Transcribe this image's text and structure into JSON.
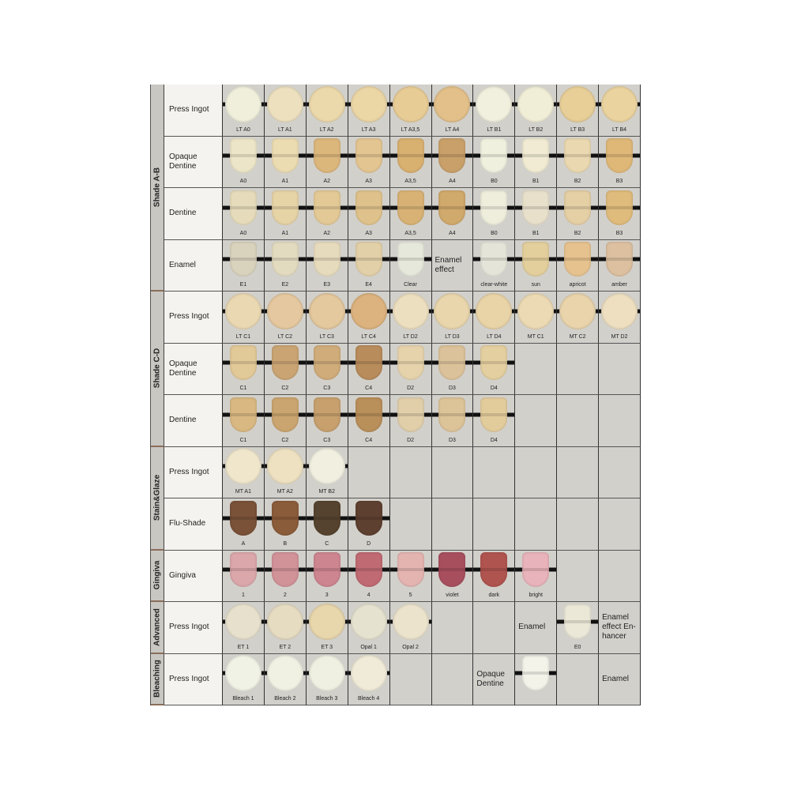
{
  "groups": [
    {
      "label": "Shade A-B",
      "rows": 4
    },
    {
      "label": "Shade C-D",
      "rows": 3
    },
    {
      "label": "Stain&Glaze",
      "rows": 2
    },
    {
      "label": "Gingiva",
      "rows": 1
    },
    {
      "label": "Advanced",
      "rows": 1
    },
    {
      "label": "Bleaching",
      "rows": 1
    }
  ],
  "rows": [
    {
      "label": "Press Ingot",
      "cells": [
        {
          "s": "ingot",
          "label": "LT A0",
          "color": "#f0efdc"
        },
        {
          "s": "ingot",
          "label": "LT A1",
          "color": "#ece0bf"
        },
        {
          "s": "ingot",
          "label": "LT A2",
          "color": "#ecd9ab"
        },
        {
          "s": "ingot",
          "label": "LT A3",
          "color": "#ebd6a6"
        },
        {
          "s": "ingot",
          "label": "LT A3,5",
          "color": "#e8cc96"
        },
        {
          "s": "ingot",
          "label": "LT A4",
          "color": "#e3c08a"
        },
        {
          "s": "ingot",
          "label": "LT B1",
          "color": "#f1efdd"
        },
        {
          "s": "ingot",
          "label": "LT B2",
          "color": "#f1eed8"
        },
        {
          "s": "ingot",
          "label": "LT B3",
          "color": "#e8cf98"
        },
        {
          "s": "ingot",
          "label": "LT B4",
          "color": "#ead39f"
        }
      ]
    },
    {
      "label": "Opaque\nDentine",
      "cells": [
        {
          "s": "tab",
          "label": "A0",
          "color": "#ede5c8"
        },
        {
          "s": "tab",
          "label": "A1",
          "color": "#ecdcb2"
        },
        {
          "s": "tab",
          "label": "A2",
          "color": "#dcb77c"
        },
        {
          "s": "tab",
          "label": "A3",
          "color": "#e3c591"
        },
        {
          "s": "tab",
          "label": "A3,5",
          "color": "#d8b070"
        },
        {
          "s": "tab",
          "label": "A4",
          "color": "#c9a069"
        },
        {
          "s": "tab",
          "label": "B0",
          "color": "#f0f0df"
        },
        {
          "s": "tab",
          "label": "B1",
          "color": "#f0ebd2"
        },
        {
          "s": "tab",
          "label": "B2",
          "color": "#ead8b0"
        },
        {
          "s": "tab",
          "label": "B3",
          "color": "#dfb878"
        }
      ]
    },
    {
      "label": "Dentine",
      "cells": [
        {
          "s": "tab",
          "label": "A0",
          "color": "#e6dcbb"
        },
        {
          "s": "tab",
          "label": "A1",
          "color": "#e6d3a6"
        },
        {
          "s": "tab",
          "label": "A2",
          "color": "#e3c995"
        },
        {
          "s": "tab",
          "label": "A3",
          "color": "#dfc28b"
        },
        {
          "s": "tab",
          "label": "A3,5",
          "color": "#d8b275"
        },
        {
          "s": "tab",
          "label": "A4",
          "color": "#d0a96c"
        },
        {
          "s": "tab",
          "label": "B0",
          "color": "#efeedd"
        },
        {
          "s": "tab",
          "label": "B1",
          "color": "#e9e0cb"
        },
        {
          "s": "tab",
          "label": "B2",
          "color": "#e5cfa5"
        },
        {
          "s": "tab",
          "label": "B3",
          "color": "#dfbb7c"
        }
      ]
    },
    {
      "label": "Enamel",
      "cells": [
        {
          "s": "tab",
          "label": "E1",
          "color": "#d9d3bd"
        },
        {
          "s": "tab",
          "label": "E2",
          "color": "#e3dbc0"
        },
        {
          "s": "tab",
          "label": "E3",
          "color": "#e6dbbd"
        },
        {
          "s": "tab",
          "label": "E4",
          "color": "#e2d0a8"
        },
        {
          "s": "tab",
          "label": "Clear",
          "color": "#e6e8dc"
        },
        {
          "text": "Enamel\neffect"
        },
        {
          "s": "tab",
          "label": "clear-white",
          "color": "#e5e4d9"
        },
        {
          "s": "tab",
          "label": "sun",
          "color": "#e3cf9c"
        },
        {
          "s": "tab",
          "label": "apricot",
          "color": "#e6c28f"
        },
        {
          "s": "tab",
          "label": "amber",
          "color": "#dcc0a0"
        }
      ]
    },
    {
      "label": "Press Ingot",
      "cells": [
        {
          "s": "ingot",
          "label": "LT C1",
          "color": "#ead8b2"
        },
        {
          "s": "ingot",
          "label": "LT C2",
          "color": "#e5c89f"
        },
        {
          "s": "ingot",
          "label": "LT C3",
          "color": "#e4c89e"
        },
        {
          "s": "ingot",
          "label": "LT C4",
          "color": "#dcb27e"
        },
        {
          "s": "ingot",
          "label": "LT D2",
          "color": "#ecdfbf"
        },
        {
          "s": "ingot",
          "label": "LT D3",
          "color": "#e9d6ac"
        },
        {
          "s": "ingot",
          "label": "LT D4",
          "color": "#e9d4a8"
        },
        {
          "s": "ingot",
          "label": "MT C1",
          "color": "#ecdab4"
        },
        {
          "s": "ingot",
          "label": "MT C2",
          "color": "#e9d4ac"
        },
        {
          "s": "ingot",
          "label": "MT D2",
          "color": "#eddfc0"
        }
      ]
    },
    {
      "label": "Opaque\nDentine",
      "cells": [
        {
          "s": "tab",
          "label": "C1",
          "color": "#e2c998"
        },
        {
          "s": "tab",
          "label": "C2",
          "color": "#caa473"
        },
        {
          "s": "tab",
          "label": "C3",
          "color": "#d0ac7a"
        },
        {
          "s": "tab",
          "label": "C4",
          "color": "#b88c5b"
        },
        {
          "s": "tab",
          "label": "D2",
          "color": "#e6d3ac"
        },
        {
          "s": "tab",
          "label": "D3",
          "color": "#dcc29a"
        },
        {
          "s": "tab",
          "label": "D4",
          "color": "#e4cfa0"
        },
        {},
        {},
        {}
      ]
    },
    {
      "label": "Dentine",
      "cells": [
        {
          "s": "tab",
          "label": "C1",
          "color": "#d9b882"
        },
        {
          "s": "tab",
          "label": "C2",
          "color": "#cba56f"
        },
        {
          "s": "tab",
          "label": "C3",
          "color": "#c7a06d"
        },
        {
          "s": "tab",
          "label": "C4",
          "color": "#b98f5a"
        },
        {
          "s": "tab",
          "label": "D2",
          "color": "#e1cfaa"
        },
        {
          "s": "tab",
          "label": "D3",
          "color": "#dcc398"
        },
        {
          "s": "tab",
          "label": "D4",
          "color": "#e3cc9c"
        },
        {},
        {},
        {}
      ]
    },
    {
      "label": "Press Ingot",
      "cells": [
        {
          "s": "ingot",
          "label": "MT A1",
          "color": "#efe6cc"
        },
        {
          "s": "ingot",
          "label": "MT A2",
          "color": "#ede1c1"
        },
        {
          "s": "ingot",
          "label": "MT B2",
          "color": "#f1efe0"
        },
        {},
        {},
        {},
        {},
        {},
        {},
        {}
      ]
    },
    {
      "label": "Flu-Shade",
      "cells": [
        {
          "s": "tab",
          "label": "A",
          "color": "#7a5238"
        },
        {
          "s": "tab",
          "label": "B",
          "color": "#8b5c3a"
        },
        {
          "s": "tab",
          "label": "C",
          "color": "#56432f"
        },
        {
          "s": "tab",
          "label": "D",
          "color": "#5e4030"
        },
        {},
        {},
        {},
        {},
        {},
        {}
      ]
    },
    {
      "label": "Gingiva",
      "cells": [
        {
          "s": "tab",
          "label": "1",
          "color": "#dba7ab"
        },
        {
          "s": "tab",
          "label": "2",
          "color": "#d19298"
        },
        {
          "s": "tab",
          "label": "3",
          "color": "#cd8590"
        },
        {
          "s": "tab",
          "label": "4",
          "color": "#c06a73"
        },
        {
          "s": "tab",
          "label": "5",
          "color": "#e4b4b0"
        },
        {
          "s": "tab",
          "label": "violet",
          "color": "#a84f5e"
        },
        {
          "s": "tab",
          "label": "dark",
          "color": "#b0544f"
        },
        {
          "s": "tab",
          "label": "bright",
          "color": "#e8b3ba"
        },
        {},
        {}
      ]
    },
    {
      "label": "Press Ingot",
      "cells": [
        {
          "s": "ingot",
          "label": "ET 1",
          "color": "#e6e0cc"
        },
        {
          "s": "ingot",
          "label": "ET 2",
          "color": "#e6dcc2"
        },
        {
          "s": "ingot",
          "label": "ET 3",
          "color": "#e8d6ac"
        },
        {
          "s": "ingot",
          "label": "Opal 1",
          "color": "#e6e2d0"
        },
        {
          "s": "ingot",
          "label": "Opal 2",
          "color": "#ebe3cc"
        },
        {},
        {},
        {
          "text": "Enamel"
        },
        {
          "s": "tab",
          "label": "E0",
          "color": "#ebe8d8"
        },
        {
          "text": "Enamel\neffect En-\nhancer"
        }
      ]
    },
    {
      "label": "Press Ingot",
      "cells": [
        {
          "s": "ingot",
          "label": "Bleach 1",
          "color": "#f1f2e6"
        },
        {
          "s": "ingot",
          "label": "Bleach 2",
          "color": "#f0f0e3"
        },
        {
          "s": "ingot",
          "label": "Bleach 3",
          "color": "#eff0e2"
        },
        {
          "s": "ingot",
          "label": "Bleach 4",
          "color": "#f0ebd8"
        },
        {},
        {},
        {
          "text": "Opaque\nDentine"
        },
        {
          "s": "tab",
          "label": "",
          "color": "#f3f3ea"
        },
        {},
        {
          "text": "Enamel"
        }
      ]
    }
  ]
}
